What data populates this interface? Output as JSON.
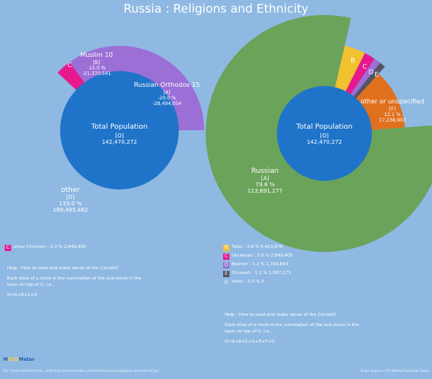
{
  "title": "Russia : Religions and Ethnicity",
  "chart_data": [
    {
      "type": "pie",
      "title": "Religions",
      "center": {
        "label": "Total Population",
        "letter": "[O]",
        "value": "142,470,272"
      },
      "slices": [
        {
          "letter": "A",
          "name": "Russian Orthodox 15",
          "percent_text": "-20.0 %",
          "value_text": "-28,494,054",
          "percent": 20.0,
          "color": "#9b6fd6"
        },
        {
          "letter": "B",
          "name": "Muslim 10",
          "percent_text": "-15.0 %",
          "value_text": "-21,370,541",
          "percent": 15.0,
          "color": "#9b6fd6"
        },
        {
          "letter": "C",
          "name": "other Christian",
          "percent_text": "2.0 %",
          "value_text": "2,849,405",
          "percent": 2.0,
          "color": "#e6198c"
        },
        {
          "letter": "D",
          "name": "other",
          "percent_text": "133.0 %",
          "value_text": "189,485,462",
          "percent": 133.0,
          "color": "#8fb9e3"
        }
      ]
    },
    {
      "type": "pie",
      "title": "Ethnicity",
      "center": {
        "label": "Total Population",
        "letter": "[O]",
        "value": "142,470,272"
      },
      "slices": [
        {
          "letter": "A",
          "name": "Russian",
          "percent_text": "79.8 %",
          "value_text": "113,691,277",
          "percent": 79.8,
          "color": "#6aa35a"
        },
        {
          "letter": "B",
          "name": "Tatar",
          "percent_text": "3.8 %",
          "value_text": "5,413,870",
          "percent": 3.8,
          "color": "#f2c12e"
        },
        {
          "letter": "C",
          "name": "Ukrainian",
          "percent_text": "2.0 %",
          "value_text": "2,849,405",
          "percent": 2.0,
          "color": "#e6198c"
        },
        {
          "letter": "D",
          "name": "Bashkir",
          "percent_text": "1.2 %",
          "value_text": "1,709,643",
          "percent": 1.2,
          "color": "#9b6fd6"
        },
        {
          "letter": "E",
          "name": "Chuvash",
          "percent_text": "1.1 %",
          "value_text": "1,567,173",
          "percent": 1.1,
          "color": "#555566"
        },
        {
          "letter": "F",
          "name": "other or unspecified",
          "percent_text": "12.1 %",
          "value_text": "17,238,903",
          "percent": 12.1,
          "color": "#e0701e"
        },
        {
          "letter": "G",
          "name": "other",
          "percent_text": "0.0 %",
          "value_text": "0",
          "percent": 0.0,
          "color": "#8fb9e3"
        }
      ]
    }
  ],
  "colors": {
    "background": "#8fb9e3",
    "center": "#1f74c9",
    "purple": "#9b6fd6",
    "magenta": "#e6198c",
    "green": "#6aa35a",
    "yellow": "#f2c12e",
    "orange": "#e0701e",
    "gray": "#555566"
  },
  "left_legend": [
    {
      "letter": "C",
      "text": "other Christian : 2.0 % 2,849,405",
      "color": "#e6198c"
    }
  ],
  "right_legend": [
    {
      "letter": "B",
      "text": "Tatar : 3.8 % 5,413,870",
      "color": "#f2c12e"
    },
    {
      "letter": "C",
      "text": "Ukrainian : 2.0 % 2,849,405",
      "color": "#e6198c"
    },
    {
      "letter": "D",
      "text": "Bashkir : 1.2 % 1,709,643",
      "color": "#9b6fd6"
    },
    {
      "letter": "E",
      "text": "Chuvash : 1.1 % 1,567,173",
      "color": "#555566"
    },
    {
      "letter": "G",
      "text": "other : 0.0 % 0",
      "color": ""
    }
  ],
  "help_left": {
    "line1": "Help : How to read and make sense of the Circloid?",
    "line2": "Each slice of a circle is the summation of the sub-slices in the layer on top of it, i.e.,",
    "line3": "O=A+B+C+D"
  },
  "help_right": {
    "line1": "Help : How to read and make sense of the Circloid?",
    "line2": "Each slice of a circle is the summation of the sub-slices in the layer on top of it, i.e.,",
    "line3": "O=A+B+C+D+E+F+G"
  },
  "brand": {
    "part1": "M",
    "part2": "ECO",
    "part3": "Meter"
  },
  "footer_link": "For more detailed info. visit http://mecometer.com/whats/russia/religions-and-ethnicity/",
  "footer_source": "Data Source: CIA World Factbook Data"
}
